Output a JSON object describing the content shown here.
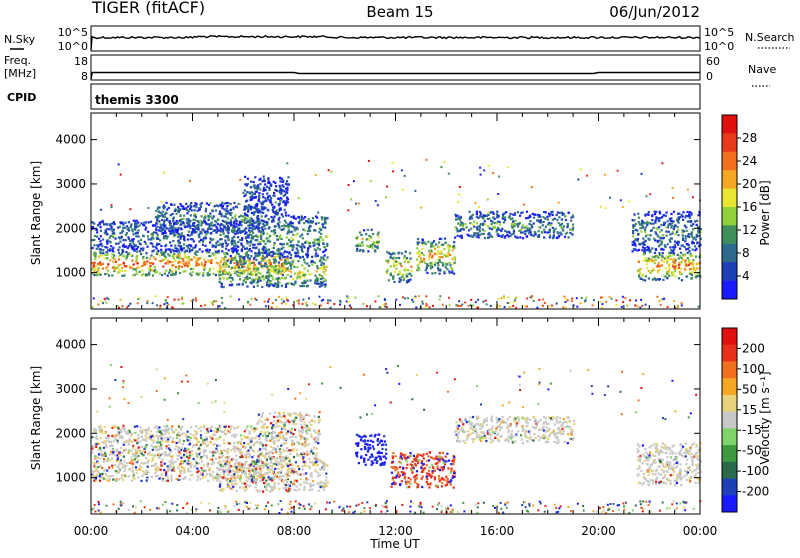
{
  "header": {
    "radar": "TIGER (fitACF)",
    "beam": "Beam 15",
    "date": "06/Jun/2012"
  },
  "nsky_panel": {
    "left_label": "N.Sky",
    "right_label": "N.Search",
    "left_ticks": [
      "10^5",
      "10^0"
    ],
    "right_ticks": [
      "10^5",
      "10^0"
    ]
  },
  "freq_panel": {
    "left_label_1": "Freq.",
    "left_label_2": "[MHz]",
    "right_label": "Nave",
    "left_ticks": [
      "18",
      "8"
    ],
    "right_ticks": [
      "60",
      "0"
    ]
  },
  "cpid_panel": {
    "label": "CPID",
    "value": "themis 3300"
  },
  "x_axis": {
    "label": "Time UT",
    "ticks": [
      "00:00",
      "04:00",
      "08:00",
      "12:00",
      "16:00",
      "20:00",
      "00:00"
    ]
  },
  "chart_data": [
    {
      "type": "heatmap",
      "title": "",
      "xlabel": "",
      "ylabel": "Slant Range [km]",
      "x_range_hours": [
        0,
        24
      ],
      "ylim": [
        180,
        4600
      ],
      "y_ticks": [
        1000,
        2000,
        3000,
        4000
      ],
      "colorbar": {
        "label": "Power [dB]",
        "ticks": [
          "4",
          "8",
          "12",
          "16",
          "20",
          "24",
          "28"
        ],
        "colors": [
          "#1a1aff",
          "#1e3fb8",
          "#2d6b8e",
          "#3f8f5a",
          "#8fd13a",
          "#e6e633",
          "#f5a623",
          "#f07020",
          "#e83a18",
          "#e0100f"
        ]
      },
      "regions": [
        {
          "t0": 0.0,
          "t1": 7.8,
          "r0": 950,
          "r1": 1500,
          "level": 0.8
        },
        {
          "t0": 0.0,
          "t1": 6.5,
          "r0": 1500,
          "r1": 2200,
          "level": 0.25
        },
        {
          "t0": 2.5,
          "t1": 6.8,
          "r0": 1900,
          "r1": 2600,
          "level": 0.3
        },
        {
          "t0": 5.0,
          "t1": 9.3,
          "r0": 700,
          "r1": 1400,
          "level": 0.55
        },
        {
          "t0": 6.5,
          "t1": 9.3,
          "r0": 1400,
          "r1": 2300,
          "level": 0.4
        },
        {
          "t0": 6.0,
          "t1": 7.8,
          "r0": 2300,
          "r1": 3200,
          "level": 0.2
        },
        {
          "t0": 10.4,
          "t1": 11.3,
          "r0": 1500,
          "r1": 2000,
          "level": 0.55
        },
        {
          "t0": 11.6,
          "t1": 12.6,
          "r0": 800,
          "r1": 1500,
          "level": 0.6
        },
        {
          "t0": 12.8,
          "t1": 14.3,
          "r0": 1000,
          "r1": 1800,
          "level": 0.6
        },
        {
          "t0": 14.3,
          "t1": 19.0,
          "r0": 1800,
          "r1": 2400,
          "level": 0.35
        },
        {
          "t0": 21.5,
          "t1": 24.0,
          "r0": 850,
          "r1": 1500,
          "level": 0.75
        },
        {
          "t0": 21.3,
          "t1": 24.0,
          "r0": 1500,
          "r1": 2400,
          "level": 0.3
        }
      ]
    },
    {
      "type": "heatmap",
      "title": "",
      "xlabel": "Time UT",
      "ylabel": "Slant Range [km]",
      "x_range_hours": [
        0,
        24
      ],
      "ylim": [
        180,
        4600
      ],
      "y_ticks": [
        1000,
        2000,
        3000,
        4000
      ],
      "colorbar": {
        "label": "Velocity [m s⁻¹]",
        "ticks": [
          "200",
          "100",
          "50",
          "15",
          "-15",
          "-50",
          "-100",
          "-200"
        ],
        "colors": [
          "#1a1aff",
          "#1e3fb8",
          "#2a6a4a",
          "#3e9a3e",
          "#7ed36a",
          "#c8c8c8",
          "#e6d37a",
          "#f5a623",
          "#f07020",
          "#e8301a",
          "#e0100f"
        ]
      },
      "regions": [
        {
          "t0": 0.0,
          "t1": 7.8,
          "r0": 950,
          "r1": 1500,
          "kind": "mixed"
        },
        {
          "t0": 0.0,
          "t1": 6.5,
          "r0": 1500,
          "r1": 2200,
          "kind": "mixed"
        },
        {
          "t0": 5.0,
          "t1": 9.3,
          "r0": 700,
          "r1": 1400,
          "kind": "mixed"
        },
        {
          "t0": 6.5,
          "t1": 9.0,
          "r0": 1400,
          "r1": 2500,
          "kind": "mixed"
        },
        {
          "t0": 10.4,
          "t1": 11.6,
          "r0": 1300,
          "r1": 2000,
          "kind": "blue"
        },
        {
          "t0": 11.8,
          "t1": 14.3,
          "r0": 800,
          "r1": 1600,
          "kind": "red"
        },
        {
          "t0": 14.3,
          "t1": 19.0,
          "r0": 1800,
          "r1": 2400,
          "kind": "gray"
        },
        {
          "t0": 21.5,
          "t1": 24.0,
          "r0": 850,
          "r1": 1800,
          "kind": "gray"
        }
      ]
    }
  ]
}
